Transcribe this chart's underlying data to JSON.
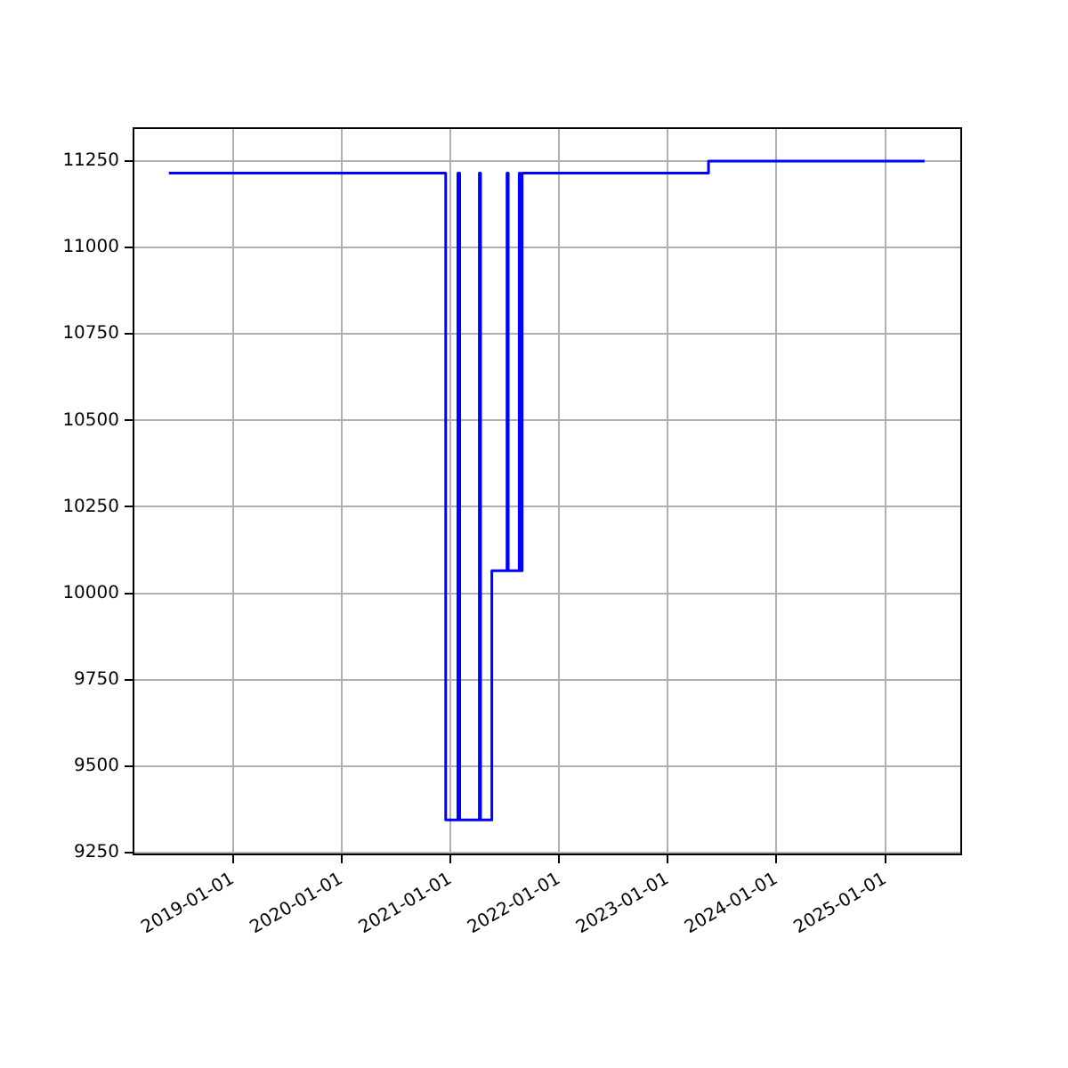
{
  "chart_data": {
    "type": "step",
    "x": [
      "2018-05-31",
      "2020-12-16",
      "2021-01-26",
      "2021-02-01",
      "2021-04-08",
      "2021-04-12",
      "2021-05-20",
      "2021-07-10",
      "2021-07-14",
      "2021-08-20",
      "2021-08-23",
      "2021-08-30",
      "2023-05-18",
      "2025-05-13"
    ],
    "series": [
      {
        "color": "#0000ff",
        "values": [
          11215,
          9345,
          11215,
          9345,
          11215,
          9345,
          10065,
          11215,
          10065,
          11215,
          10065,
          11215,
          11250,
          11250
        ]
      }
    ],
    "xlim": [
      "2018-02-01",
      "2025-09-13"
    ],
    "xticks": [
      "2019-01-01",
      "2020-01-01",
      "2021-01-01",
      "2022-01-01",
      "2023-01-01",
      "2024-01-01",
      "2025-01-01"
    ],
    "ylim": [
      9245,
      11345
    ],
    "yticks": [
      9250,
      9500,
      9750,
      10000,
      10250,
      10500,
      10750,
      11000,
      11250
    ],
    "grid": true,
    "legend": false
  }
}
